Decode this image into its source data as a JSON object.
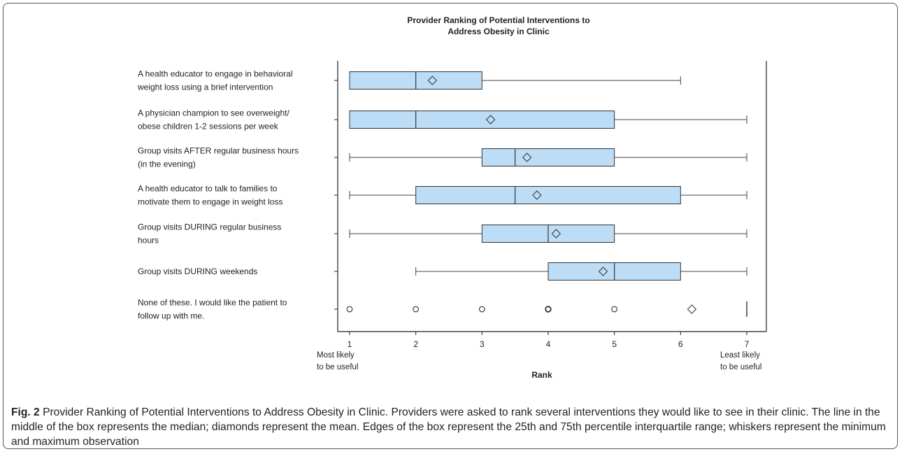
{
  "chart_data": {
    "type": "box",
    "title_lines": [
      "Provider Ranking of Potential Interventions to",
      "Address Obesity in Clinic"
    ],
    "xlabel": "Rank",
    "xlim": [
      1,
      7
    ],
    "xticks": [
      1,
      2,
      3,
      4,
      5,
      6,
      7
    ],
    "x_left_note": [
      "Most likely",
      "to be useful"
    ],
    "x_right_note": [
      "Least  likely",
      "to be useful"
    ],
    "box_color": "#bddcf5",
    "categories": [
      {
        "label": [
          "A health educator to engage in behavioral",
          "weight loss using a brief intervention"
        ],
        "min": 1,
        "q1": 1,
        "median": 2,
        "q3": 3,
        "max": 6,
        "mean": 2.25
      },
      {
        "label": [
          "A physician champion to see overweight/",
          "obese children 1-2 sessions per week"
        ],
        "min": 1,
        "q1": 1,
        "median": 2,
        "q3": 5,
        "max": 7,
        "mean": 3.13
      },
      {
        "label": [
          "Group visits AFTER regular business hours",
          "(in the evening)"
        ],
        "min": 1,
        "q1": 3,
        "median": 3.5,
        "q3": 5,
        "max": 7,
        "mean": 3.68
      },
      {
        "label": [
          "A health educator to talk to families to",
          "motivate them to engage in weight loss"
        ],
        "min": 1,
        "q1": 2,
        "median": 3.5,
        "q3": 6,
        "max": 7,
        "mean": 3.83
      },
      {
        "label": [
          "Group visits DURING regular business",
          "hours"
        ],
        "min": 1,
        "q1": 3,
        "median": 4,
        "q3": 5,
        "max": 7,
        "mean": 4.12
      },
      {
        "label": [
          "Group visits DURING weekends"
        ],
        "min": 2,
        "q1": 4,
        "median": 5,
        "q3": 6,
        "max": 7,
        "mean": 4.83
      },
      {
        "label": [
          "None of these. I would like the patient to",
          "follow up with me."
        ],
        "median": 7,
        "mean": 6.17,
        "outliers": [
          1,
          2,
          3,
          4,
          5
        ]
      }
    ]
  },
  "caption": {
    "label": "Fig. 2",
    "text": " Provider Ranking of Potential Interventions to Address Obesity in Clinic. Providers were asked to rank several interventions they would like to see in their clinic. The line in the middle of the box represents the median; diamonds represent the mean. Edges of the box represent the 25th and 75th percentile interquartile range; whiskers represent the minimum and maximum observation"
  }
}
